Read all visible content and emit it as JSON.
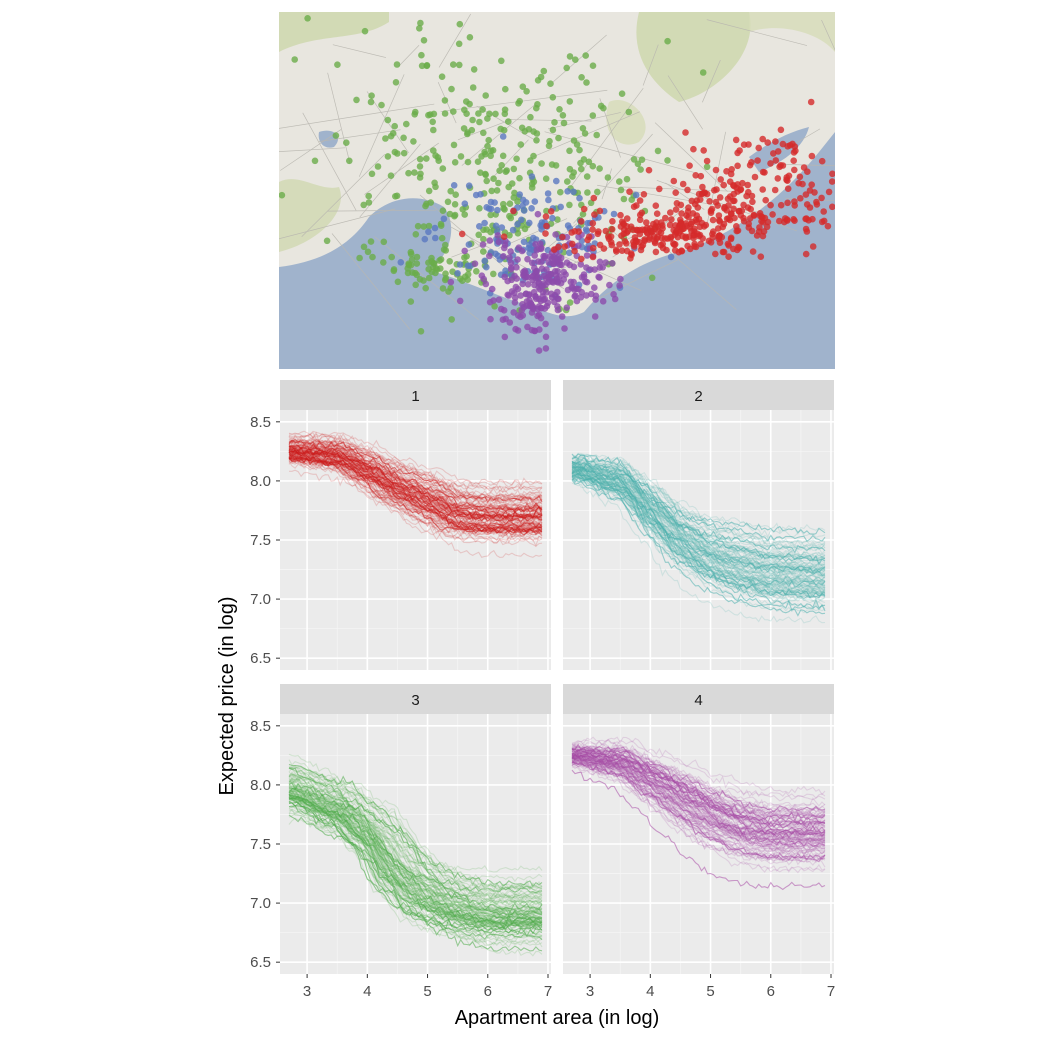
{
  "colors": {
    "panel_bg": "#ebebeb",
    "grid_major": "#ffffff",
    "strip_bg": "#d9d9d9",
    "water": "#a0b3cc",
    "land": "#e8e6df",
    "park": "#cfd8b0",
    "cluster_colors": [
      "#cc1e1e",
      "#4fb0ae",
      "#4fab4a",
      "#a94ea8"
    ],
    "map_point_colors": {
      "red": "#d42a2a",
      "green": "#6aac4a",
      "blue": "#5a78c0",
      "purple": "#8c4bab"
    }
  },
  "map": {
    "description_icon": "map-icon"
  },
  "chart_data": {
    "type": "line",
    "xlabel": "Apartment area (in log)",
    "ylabel": "Expected price (in log)",
    "xlim": [
      2.55,
      7.05
    ],
    "ylim": [
      6.4,
      8.6
    ],
    "x_ticks": [
      3,
      4,
      5,
      6,
      7
    ],
    "y_ticks": [
      6.5,
      7.0,
      7.5,
      8.0,
      8.5
    ],
    "y_tick_labels": [
      "6.5",
      "7.0",
      "7.5",
      "8.0",
      "8.5"
    ],
    "grid": true,
    "facets": [
      {
        "label": "1",
        "color": "#cc1e1e",
        "x_range": [
          2.7,
          6.9
        ],
        "center": [
          [
            2.7,
            8.25
          ],
          [
            3.5,
            8.22
          ],
          [
            4.0,
            8.1
          ],
          [
            4.5,
            7.95
          ],
          [
            5.0,
            7.85
          ],
          [
            5.5,
            7.72
          ],
          [
            6.0,
            7.7
          ],
          [
            6.9,
            7.7
          ]
        ],
        "spread_low": 0.1,
        "spread_high": 0.2
      },
      {
        "label": "2",
        "color": "#4fb0ae",
        "x_range": [
          2.7,
          6.9
        ],
        "center": [
          [
            2.7,
            8.1
          ],
          [
            3.5,
            8.0
          ],
          [
            4.0,
            7.75
          ],
          [
            4.5,
            7.5
          ],
          [
            5.0,
            7.35
          ],
          [
            5.5,
            7.28
          ],
          [
            6.0,
            7.22
          ],
          [
            6.9,
            7.2
          ]
        ],
        "spread_low": 0.08,
        "spread_high": 0.25
      },
      {
        "label": "3",
        "color": "#4fab4a",
        "x_range": [
          2.7,
          6.9
        ],
        "center": [
          [
            2.7,
            7.95
          ],
          [
            3.5,
            7.8
          ],
          [
            4.0,
            7.6
          ],
          [
            4.5,
            7.25
          ],
          [
            5.0,
            7.05
          ],
          [
            5.5,
            6.95
          ],
          [
            6.0,
            6.9
          ],
          [
            6.9,
            6.9
          ]
        ],
        "spread_low": 0.2,
        "spread_high": 0.25
      },
      {
        "label": "4",
        "color": "#a94ea8",
        "x_range": [
          2.7,
          6.9
        ],
        "center": [
          [
            2.7,
            8.25
          ],
          [
            3.5,
            8.2
          ],
          [
            4.0,
            8.05
          ],
          [
            4.5,
            7.9
          ],
          [
            5.0,
            7.75
          ],
          [
            5.5,
            7.65
          ],
          [
            6.0,
            7.6
          ],
          [
            6.9,
            7.6
          ]
        ],
        "spread_low": 0.08,
        "spread_high": 0.25
      }
    ]
  }
}
